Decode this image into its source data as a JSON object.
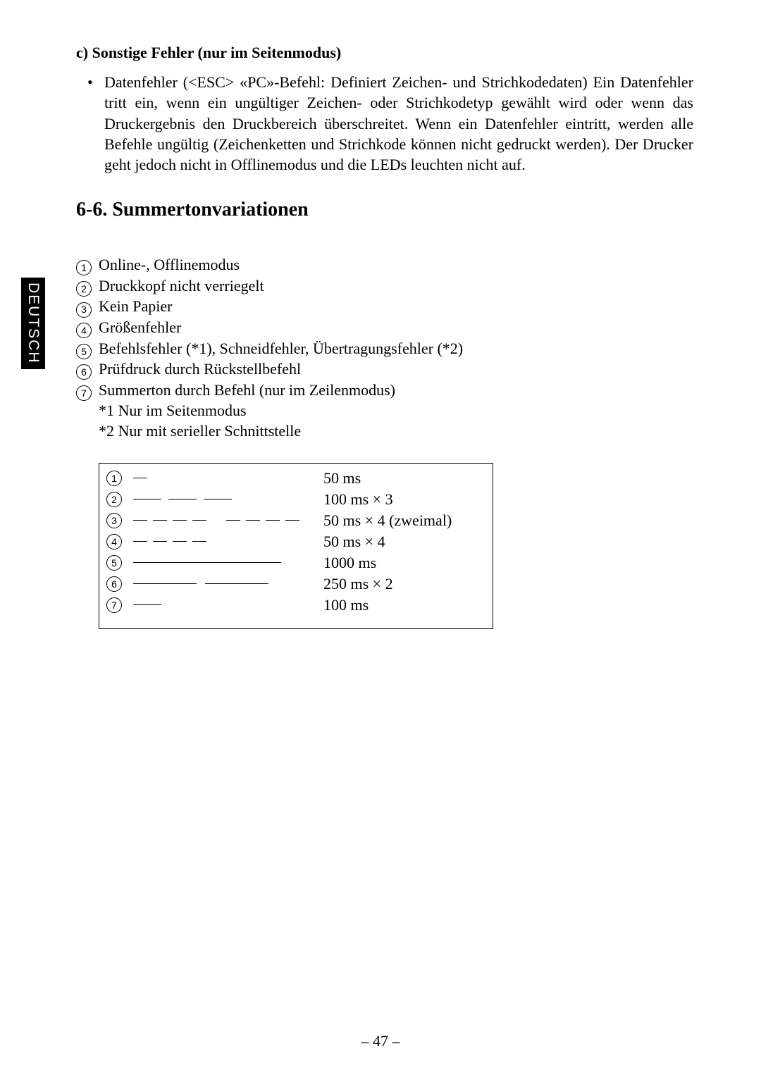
{
  "sideTab": "DEUTSCH",
  "subheading": "c) Sonstige Fehler (nur im Seitenmodus)",
  "bulletSymbol": "•",
  "bulletText": "Datenfehler (<ESC> «PC»-Befehl: Definiert Zeichen- und Strichkodedaten) Ein Datenfehler tritt ein, wenn ein ungültiger Zeichen- oder Strichkodetyp gewählt wird oder wenn das Druckergebnis den Druckbereich überschreitet. Wenn ein Datenfehler eintritt, werden alle Befehle ungültig (Zeichenketten und Strichkode können nicht gedruckt werden). Der Drucker geht jedoch nicht in Offlinemodus und die LEDs leuchten nicht auf.",
  "sectionTitle": "6-6. Summertonvariationen",
  "items": [
    {
      "num": "1",
      "label": "Online-, Offlinemodus"
    },
    {
      "num": "2",
      "label": "Druckkopf nicht verriegelt"
    },
    {
      "num": "3",
      "label": "Kein Papier"
    },
    {
      "num": "4",
      "label": "Größenfehler"
    },
    {
      "num": "5",
      "label": "Befehlsfehler (*1), Schneidfehler, Übertragungsfehler (*2)"
    },
    {
      "num": "6",
      "label": "Prüfdruck durch Rückstellbefehl"
    },
    {
      "num": "7",
      "label": "Summerton durch Befehl (nur im Zeilenmodus)"
    }
  ],
  "notes": [
    "*1  Nur im Seitenmodus",
    "*2  Nur mit serieller Schnittstelle"
  ],
  "buzzer": [
    {
      "num": "1",
      "pattern_segments": [
        20
      ],
      "pattern_gaps": [],
      "duration": "50 ms"
    },
    {
      "num": "2",
      "pattern_segments": [
        40,
        40,
        40
      ],
      "pattern_gaps": [
        10,
        10
      ],
      "duration": "100 ms × 3"
    },
    {
      "num": "3",
      "pattern_segments": [
        20,
        20,
        20,
        20,
        20,
        20,
        20,
        20
      ],
      "pattern_gaps": [
        8,
        8,
        8,
        28,
        8,
        8,
        8
      ],
      "duration": "50 ms × 4 (zweimal)"
    },
    {
      "num": "4",
      "pattern_segments": [
        20,
        20,
        20,
        20
      ],
      "pattern_gaps": [
        8,
        8,
        8
      ],
      "duration": "50 ms × 4"
    },
    {
      "num": "5",
      "pattern_segments": [
        210
      ],
      "pattern_gaps": [],
      "duration": "1000 ms"
    },
    {
      "num": "6",
      "pattern_segments": [
        90,
        90
      ],
      "pattern_gaps": [
        12
      ],
      "duration": "250 ms × 2"
    },
    {
      "num": "7",
      "pattern_segments": [
        40
      ],
      "pattern_gaps": [],
      "duration": "100 ms"
    }
  ],
  "pageNumber": "– 47 –"
}
